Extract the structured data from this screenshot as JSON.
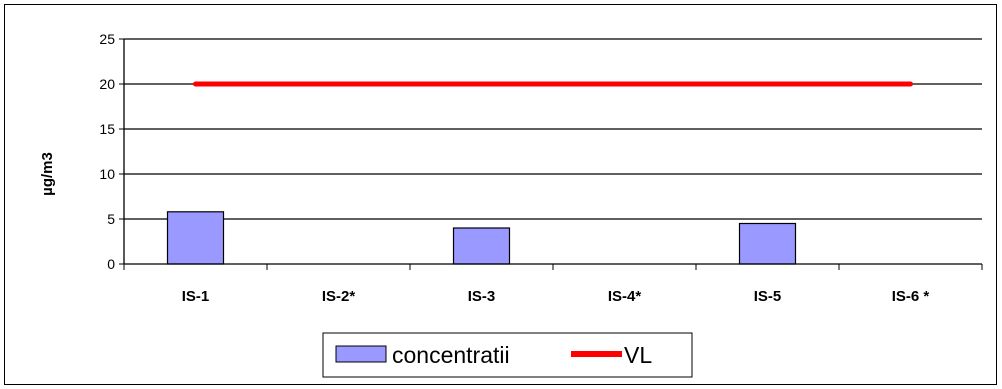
{
  "chart_data": {
    "type": "bar",
    "categories": [
      "IS-1",
      "IS-2*",
      "IS-3",
      "IS-4*",
      "IS-5",
      "IS-6 *"
    ],
    "series": [
      {
        "name": "concentratii",
        "type": "bar",
        "values": [
          5.8,
          null,
          4.0,
          null,
          4.5,
          null
        ],
        "color": "#9999ff"
      },
      {
        "name": "VL",
        "type": "line",
        "values": [
          20,
          20,
          20,
          20,
          20,
          20
        ],
        "color": "#ff0000"
      }
    ],
    "ylabel": "µg/m3",
    "xlabel": "",
    "ylim": [
      0,
      25
    ],
    "yticks": [
      "0",
      "5",
      "10",
      "15",
      "20",
      "25"
    ],
    "grid": true,
    "legend_position": "bottom"
  }
}
